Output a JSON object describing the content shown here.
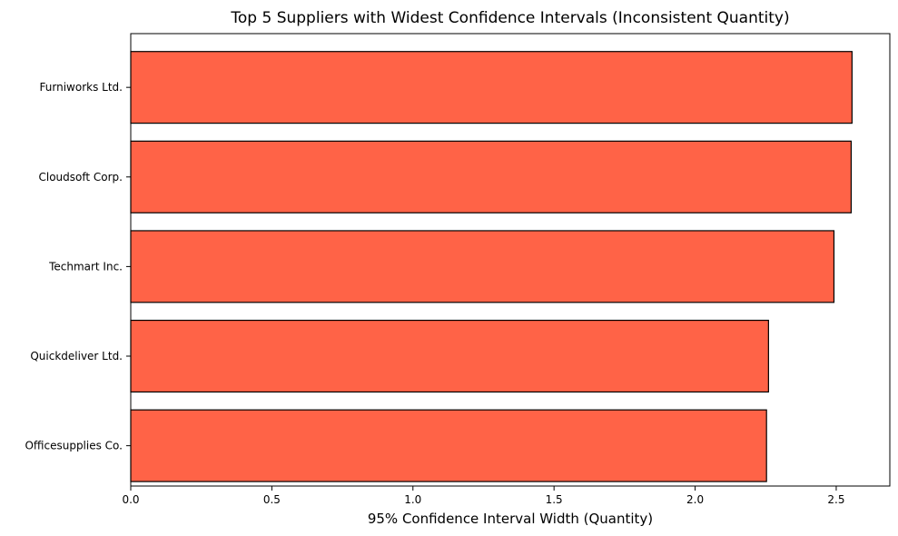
{
  "chart_data": {
    "type": "bar",
    "orientation": "horizontal",
    "title": "Top 5 Suppliers with Widest Confidence Intervals (Inconsistent Quantity)",
    "xlabel": "95% Confidence Interval Width (Quantity)",
    "ylabel": "",
    "categories": [
      "Furniworks Ltd.",
      "Cloudsoft Corp.",
      "Techmart Inc.",
      "Quickdeliver Ltd.",
      "Officesupplies Co."
    ],
    "values": [
      2.556,
      2.553,
      2.492,
      2.26,
      2.253
    ],
    "xlim": [
      0,
      2.69
    ],
    "xticks": [
      "0.0",
      "0.5",
      "1.0",
      "1.5",
      "2.0",
      "2.5"
    ],
    "bar_color": "#ff6347",
    "bar_edge_color": "#000000",
    "grid": false,
    "legend": "none"
  }
}
